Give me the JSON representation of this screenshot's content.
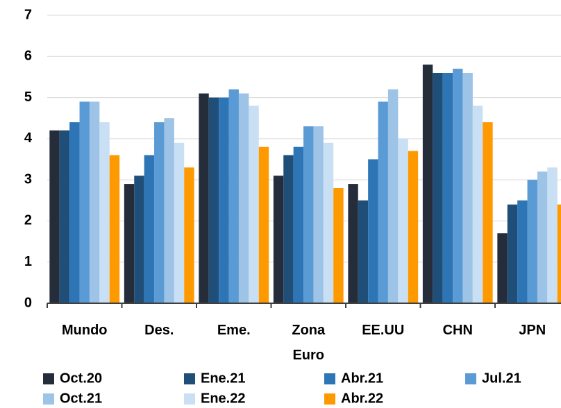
{
  "chart_data": {
    "type": "bar",
    "categories": [
      "Mundo",
      "Des.",
      "Eme.",
      "Zona Euro",
      "EE.UU",
      "CHN",
      "JPN"
    ],
    "series": [
      {
        "name": "Oct.20",
        "color": "#262d3a",
        "values": [
          4.2,
          2.9,
          5.1,
          3.1,
          2.9,
          5.8,
          1.7
        ]
      },
      {
        "name": "Ene.21",
        "color": "#1f4e79",
        "values": [
          4.2,
          3.1,
          5.0,
          3.6,
          2.5,
          5.6,
          2.4
        ]
      },
      {
        "name": "Abr.21",
        "color": "#2e75b6",
        "values": [
          4.4,
          3.6,
          5.0,
          3.8,
          3.5,
          5.6,
          2.5
        ]
      },
      {
        "name": "Jul.21",
        "color": "#5b9bd5",
        "values": [
          4.9,
          4.4,
          5.2,
          4.3,
          4.9,
          5.7,
          3.0
        ]
      },
      {
        "name": "Oct.21",
        "color": "#9dc3e6",
        "values": [
          4.9,
          4.5,
          5.1,
          4.3,
          5.2,
          5.6,
          3.2
        ]
      },
      {
        "name": "Ene.22",
        "color": "#c9dff3",
        "values": [
          4.4,
          3.9,
          4.8,
          3.9,
          4.0,
          4.8,
          3.3
        ]
      },
      {
        "name": "Abr.22",
        "color": "#ff9900",
        "values": [
          3.6,
          3.3,
          3.8,
          2.8,
          3.7,
          4.4,
          2.4
        ]
      }
    ],
    "ylim": [
      0,
      7
    ],
    "yticks": [
      0,
      1,
      2,
      3,
      4,
      5,
      6,
      7
    ],
    "grid": true
  }
}
